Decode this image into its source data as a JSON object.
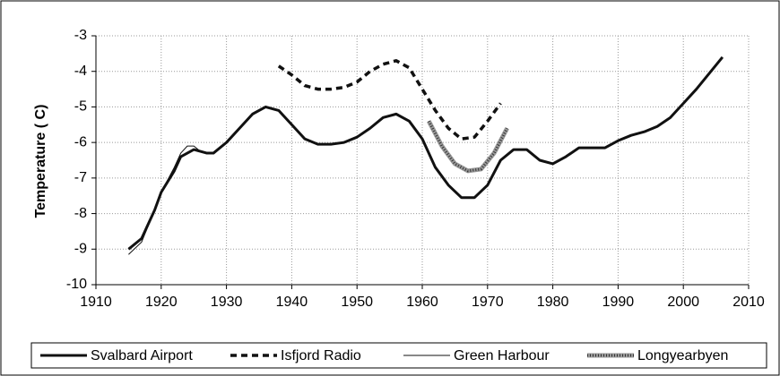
{
  "chart_data": {
    "type": "line",
    "y_label": "Temperature ( C)",
    "xlim": [
      1910,
      2010
    ],
    "xticks": [
      1910,
      1920,
      1930,
      1940,
      1950,
      1960,
      1970,
      1980,
      1990,
      2000,
      2010
    ],
    "ylim": [
      -10,
      -3
    ],
    "yticks": [
      -10,
      -9,
      -8,
      -7,
      -6,
      -5,
      -4,
      -3
    ],
    "grid": true,
    "legend": "bottom",
    "series": [
      {
        "name": "Svalbard Airport",
        "color": "#111111",
        "line_style": "solid",
        "line_width": 3,
        "x": [
          1915,
          1917,
          1919,
          1920,
          1922,
          1923,
          1925,
          1927,
          1928,
          1930,
          1932,
          1934,
          1936,
          1938,
          1940,
          1942,
          1944,
          1946,
          1948,
          1950,
          1952,
          1954,
          1956,
          1958,
          1960,
          1962,
          1964,
          1966,
          1968,
          1970,
          1972,
          1974,
          1976,
          1978,
          1980,
          1982,
          1984,
          1986,
          1988,
          1990,
          1992,
          1994,
          1996,
          1998,
          2000,
          2002,
          2004,
          2006
        ],
        "values": [
          -9.0,
          -8.7,
          -7.9,
          -7.4,
          -6.8,
          -6.4,
          -6.2,
          -6.3,
          -6.3,
          -6.0,
          -5.6,
          -5.2,
          -5.0,
          -5.1,
          -5.5,
          -5.9,
          -6.05,
          -6.05,
          -6.0,
          -5.85,
          -5.6,
          -5.3,
          -5.2,
          -5.4,
          -5.9,
          -6.7,
          -7.2,
          -7.55,
          -7.55,
          -7.2,
          -6.5,
          -6.2,
          -6.2,
          -6.5,
          -6.6,
          -6.4,
          -6.15,
          -6.15,
          -6.15,
          -5.95,
          -5.8,
          -5.7,
          -5.55,
          -5.3,
          -4.9,
          -4.5,
          -4.05,
          -3.6
        ]
      },
      {
        "name": "Isfjord Radio",
        "color": "#111111",
        "line_style": "dashed",
        "line_width": 3.5,
        "x": [
          1938,
          1940,
          1942,
          1944,
          1946,
          1948,
          1950,
          1952,
          1954,
          1956,
          1958,
          1960,
          1962,
          1964,
          1966,
          1968,
          1970,
          1972
        ],
        "values": [
          -3.85,
          -4.1,
          -4.4,
          -4.5,
          -4.5,
          -4.45,
          -4.3,
          -4.0,
          -3.8,
          -3.7,
          -3.9,
          -4.5,
          -5.1,
          -5.6,
          -5.9,
          -5.85,
          -5.4,
          -4.9
        ]
      },
      {
        "name": "Green Harbour",
        "color": "#111111",
        "line_style": "solid",
        "line_width": 1,
        "x": [
          1915,
          1917,
          1919,
          1920,
          1922,
          1923,
          1924,
          1925,
          1926,
          1927
        ],
        "values": [
          -9.15,
          -8.8,
          -7.9,
          -7.4,
          -6.7,
          -6.3,
          -6.1,
          -6.1,
          -6.25,
          -6.3
        ]
      },
      {
        "name": "Longyearbyen",
        "color": "#999999",
        "line_style": "hatched",
        "line_width": 5,
        "x": [
          1961,
          1963,
          1965,
          1967,
          1969,
          1971,
          1973
        ],
        "values": [
          -5.4,
          -6.1,
          -6.6,
          -6.8,
          -6.75,
          -6.3,
          -5.6
        ]
      }
    ]
  }
}
